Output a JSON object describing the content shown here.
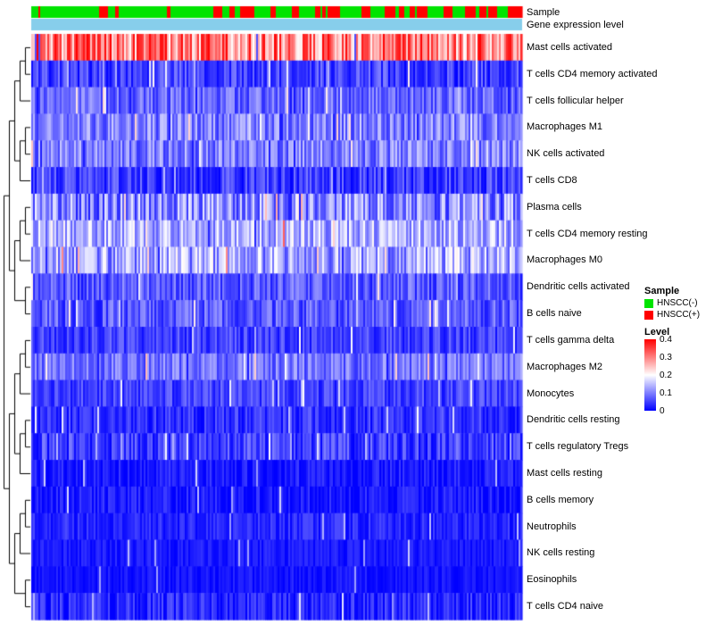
{
  "annotations": {
    "sample_label": "Sample",
    "expression_label": "Gene expression level",
    "expression_bar_color": "#87CEEB",
    "sample_negative_color": "#00E400",
    "sample_positive_color": "#FF0000"
  },
  "legend": {
    "sample": {
      "title": "Sample",
      "items": [
        {
          "label": "HNSCC(-)",
          "color": "#00E400"
        },
        {
          "label": "HNSCC(+)",
          "color": "#FF0000"
        }
      ]
    },
    "level": {
      "title": "Level",
      "ticks": [
        "0.4",
        "0.3",
        "0.2",
        "0.1",
        "0"
      ]
    }
  },
  "chart_data": {
    "type": "heatmap",
    "title": "",
    "value_range": [
      0,
      0.4
    ],
    "colormap": {
      "low": "#0000FF",
      "mid": "#FFFFFF",
      "high": "#FF0000",
      "midpoint": 0.2
    },
    "n_samples": 275,
    "sample_groups": [
      "HNSCC(-)",
      "HNSCC(+)"
    ],
    "rows": [
      {
        "label": "Mast cells activated",
        "mean": 0.3,
        "spread": 0.1
      },
      {
        "label": "T cells CD4 memory activated",
        "mean": 0.05,
        "spread": 0.05
      },
      {
        "label": "T cells follicular helper",
        "mean": 0.08,
        "spread": 0.05
      },
      {
        "label": "Macrophages M1",
        "mean": 0.1,
        "spread": 0.06
      },
      {
        "label": "NK cells activated",
        "mean": 0.1,
        "spread": 0.06
      },
      {
        "label": "T cells CD8",
        "mean": 0.05,
        "spread": 0.05
      },
      {
        "label": "Plasma cells",
        "mean": 0.11,
        "spread": 0.08
      },
      {
        "label": "T cells CD4 memory resting",
        "mean": 0.14,
        "spread": 0.07
      },
      {
        "label": "Macrophages M0",
        "mean": 0.13,
        "spread": 0.08
      },
      {
        "label": "Dendritic cells activated",
        "mean": 0.07,
        "spread": 0.05
      },
      {
        "label": "B cells naive",
        "mean": 0.07,
        "spread": 0.05
      },
      {
        "label": "T cells gamma delta",
        "mean": 0.05,
        "spread": 0.04
      },
      {
        "label": "Macrophages M2",
        "mean": 0.09,
        "spread": 0.05
      },
      {
        "label": "Monocytes",
        "mean": 0.05,
        "spread": 0.04
      },
      {
        "label": "Dendritic cells resting",
        "mean": 0.04,
        "spread": 0.04
      },
      {
        "label": "T cells regulatory  Tregs",
        "mean": 0.05,
        "spread": 0.05
      },
      {
        "label": "Mast cells resting",
        "mean": 0.02,
        "spread": 0.03
      },
      {
        "label": "B cells memory",
        "mean": 0.02,
        "spread": 0.03
      },
      {
        "label": "Neutrophils",
        "mean": 0.03,
        "spread": 0.03
      },
      {
        "label": "NK cells resting",
        "mean": 0.02,
        "spread": 0.02
      },
      {
        "label": "Eosinophils",
        "mean": 0.015,
        "spread": 0.02
      },
      {
        "label": "T cells CD4 naive",
        "mean": 0.03,
        "spread": 0.04
      }
    ]
  }
}
